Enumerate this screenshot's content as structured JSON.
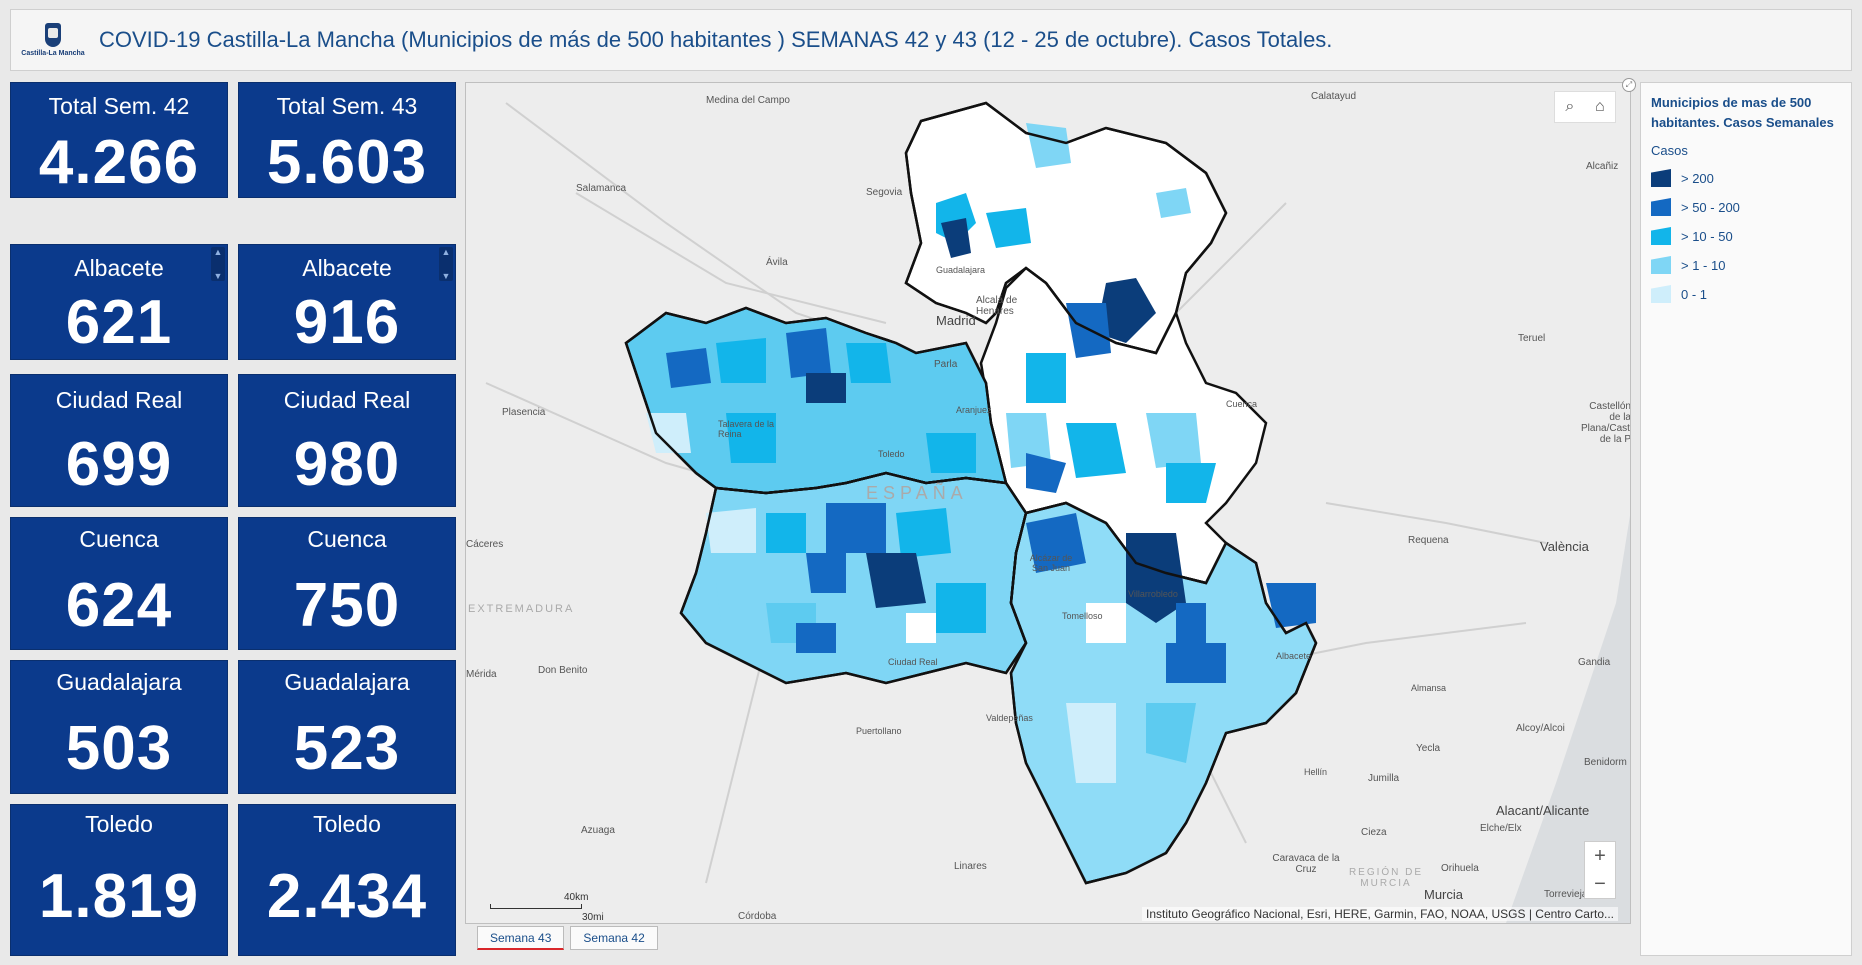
{
  "header": {
    "logo_text": "Castilla-La Mancha",
    "title": "COVID-19 Castilla-La Mancha (Municipios de más de 500 habitantes ) SEMANAS 42 y 43 (12 - 25 de octubre). Casos Totales."
  },
  "cards": {
    "total42": {
      "label": "Total Sem. 42",
      "value": "4.266"
    },
    "total43": {
      "label": "Total Sem. 43",
      "value": "5.603"
    },
    "albacete42": {
      "label": "Albacete",
      "value": "621"
    },
    "albacete43": {
      "label": "Albacete",
      "value": "916"
    },
    "ciudadreal42": {
      "label": "Ciudad Real",
      "value": "699"
    },
    "ciudadreal43": {
      "label": "Ciudad Real",
      "value": "980"
    },
    "cuenca42": {
      "label": "Cuenca",
      "value": "624"
    },
    "cuenca43": {
      "label": "Cuenca",
      "value": "750"
    },
    "guadalajara42": {
      "label": "Guadalajara",
      "value": "503"
    },
    "guadalajara43": {
      "label": "Guadalajara",
      "value": "523"
    },
    "toledo42": {
      "label": "Toledo",
      "value": "1.819"
    },
    "toledo43": {
      "label": "Toledo",
      "value": "2.434"
    }
  },
  "map": {
    "places": {
      "medina": "Medina del Campo",
      "calatayud": "Calatayud",
      "salamanca": "Salamanca",
      "segovia": "Segovia",
      "alcaniz": "Alcañiz",
      "avila": "Ávila",
      "guadalajara": "Guadalajara",
      "alcala": "Alcalá de Henares",
      "madrid": "Madrid",
      "teruel": "Teruel",
      "parla": "Parla",
      "plasencia": "Plasencia",
      "talavera": "Talavera de la Reina",
      "aranjuez": "Aranjuez",
      "cuenca": "Cuenca",
      "toledo": "Toledo",
      "castellon": "Castellón de la Plana/Castelló de la P",
      "espana": "ESPAÑA",
      "caceres": "Cáceres",
      "requena": "Requena",
      "valencia": "València",
      "alcazar": "Alcázar de San Juan",
      "extremadura": "EXTREMADURA",
      "tomelloso": "Tomelloso",
      "villarrobledo": "Villarrobledo",
      "albacete": "Albacete",
      "donbenito": "Don Benito",
      "ciudadreal": "Ciudad Real",
      "merida": "Mérida",
      "gandia": "Gandia",
      "almansa": "Almansa",
      "puertollano": "Puertollano",
      "valdepenas": "Valdepeñas",
      "alcoy": "Alcoy/Alcoi",
      "yecla": "Yecla",
      "benidorm": "Benidorm",
      "hellin": "Hellín",
      "jumilla": "Jumilla",
      "alicante": "Alacant/Alicante",
      "azuaga": "Azuaga",
      "elche": "Elche/Elx",
      "cieza": "Cieza",
      "caravaca": "Caravaca de la Cruz",
      "orihuela": "Orihuela",
      "linares": "Linares",
      "region_murcia": "REGIÓN DE MURCIA",
      "murcia": "Murcia",
      "torrevieja": "Torrevieja",
      "cordoba": "Córdoba"
    },
    "attribution": "Instituto Geográfico Nacional, Esri, HERE, Garmin, FAO, NOAA, USGS | Centro Carto...",
    "scale_km": "40km",
    "scale_mi": "30mi",
    "zoom_in": "+",
    "zoom_out": "−",
    "search_icon": "⌕",
    "home_icon": "⌂",
    "expand_icon": "⤢"
  },
  "tabs": {
    "tab1": "Semana 43",
    "tab2": "Semana 42"
  },
  "legend": {
    "title": "Municipios de mas de 500 habitantes. Casos Semanales",
    "subtitle": "Casos",
    "items": [
      {
        "label": "> 200",
        "color": "#0b3d7a"
      },
      {
        "label": "> 50 - 200",
        "color": "#1469c2"
      },
      {
        "label": "> 10 - 50",
        "color": "#12b5ea"
      },
      {
        "label": "> 1 - 10",
        "color": "#7fd6f5"
      },
      {
        "label": "0 - 1",
        "color": "#cfeefb"
      }
    ]
  }
}
